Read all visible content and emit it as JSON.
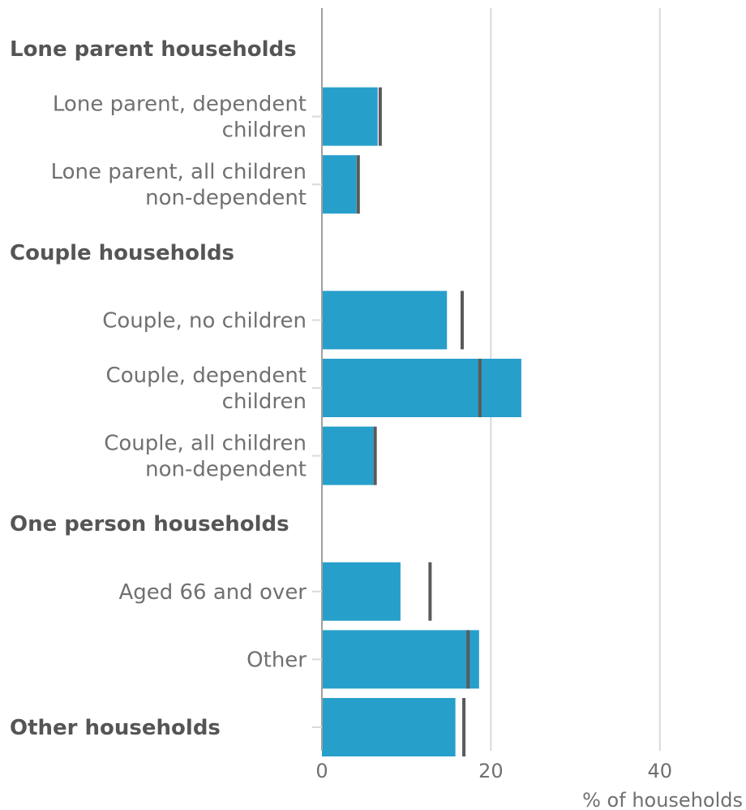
{
  "chart_data": {
    "type": "bar",
    "orientation": "horizontal",
    "xlabel": "% of households",
    "xlim": [
      0,
      50
    ],
    "xticks": [
      0,
      20,
      40
    ],
    "grid": true,
    "colors": {
      "bar": "#279fcb",
      "marker": "#5a5a5a",
      "grid": "#d9d9d9",
      "axis": "#a0a0a0"
    },
    "rows": [
      {
        "kind": "group",
        "label": "Lone parent households"
      },
      {
        "kind": "bar",
        "label": [
          "Lone parent, dependent",
          "children"
        ],
        "value": 6.6,
        "comparison": 6.9
      },
      {
        "kind": "bar",
        "label": [
          "Lone parent, all children",
          "non-dependent"
        ],
        "value": 4.1,
        "comparison": 4.3
      },
      {
        "kind": "group",
        "label": "Couple households"
      },
      {
        "kind": "bar",
        "label": [
          "Couple, no children"
        ],
        "value": 14.8,
        "comparison": 16.6
      },
      {
        "kind": "bar",
        "label": [
          "Couple, dependent",
          "children"
        ],
        "value": 23.6,
        "comparison": 18.7
      },
      {
        "kind": "bar",
        "label": [
          "Couple, all children",
          "non-dependent"
        ],
        "value": 6.1,
        "comparison": 6.3
      },
      {
        "kind": "group",
        "label": "One person households"
      },
      {
        "kind": "bar",
        "label": [
          "Aged 66 and over"
        ],
        "value": 9.3,
        "comparison": 12.8
      },
      {
        "kind": "bar",
        "label": [
          "Other"
        ],
        "value": 18.6,
        "comparison": 17.3
      },
      {
        "kind": "groupbar",
        "label": "Other households",
        "value": 15.8,
        "comparison": 16.8
      }
    ]
  }
}
